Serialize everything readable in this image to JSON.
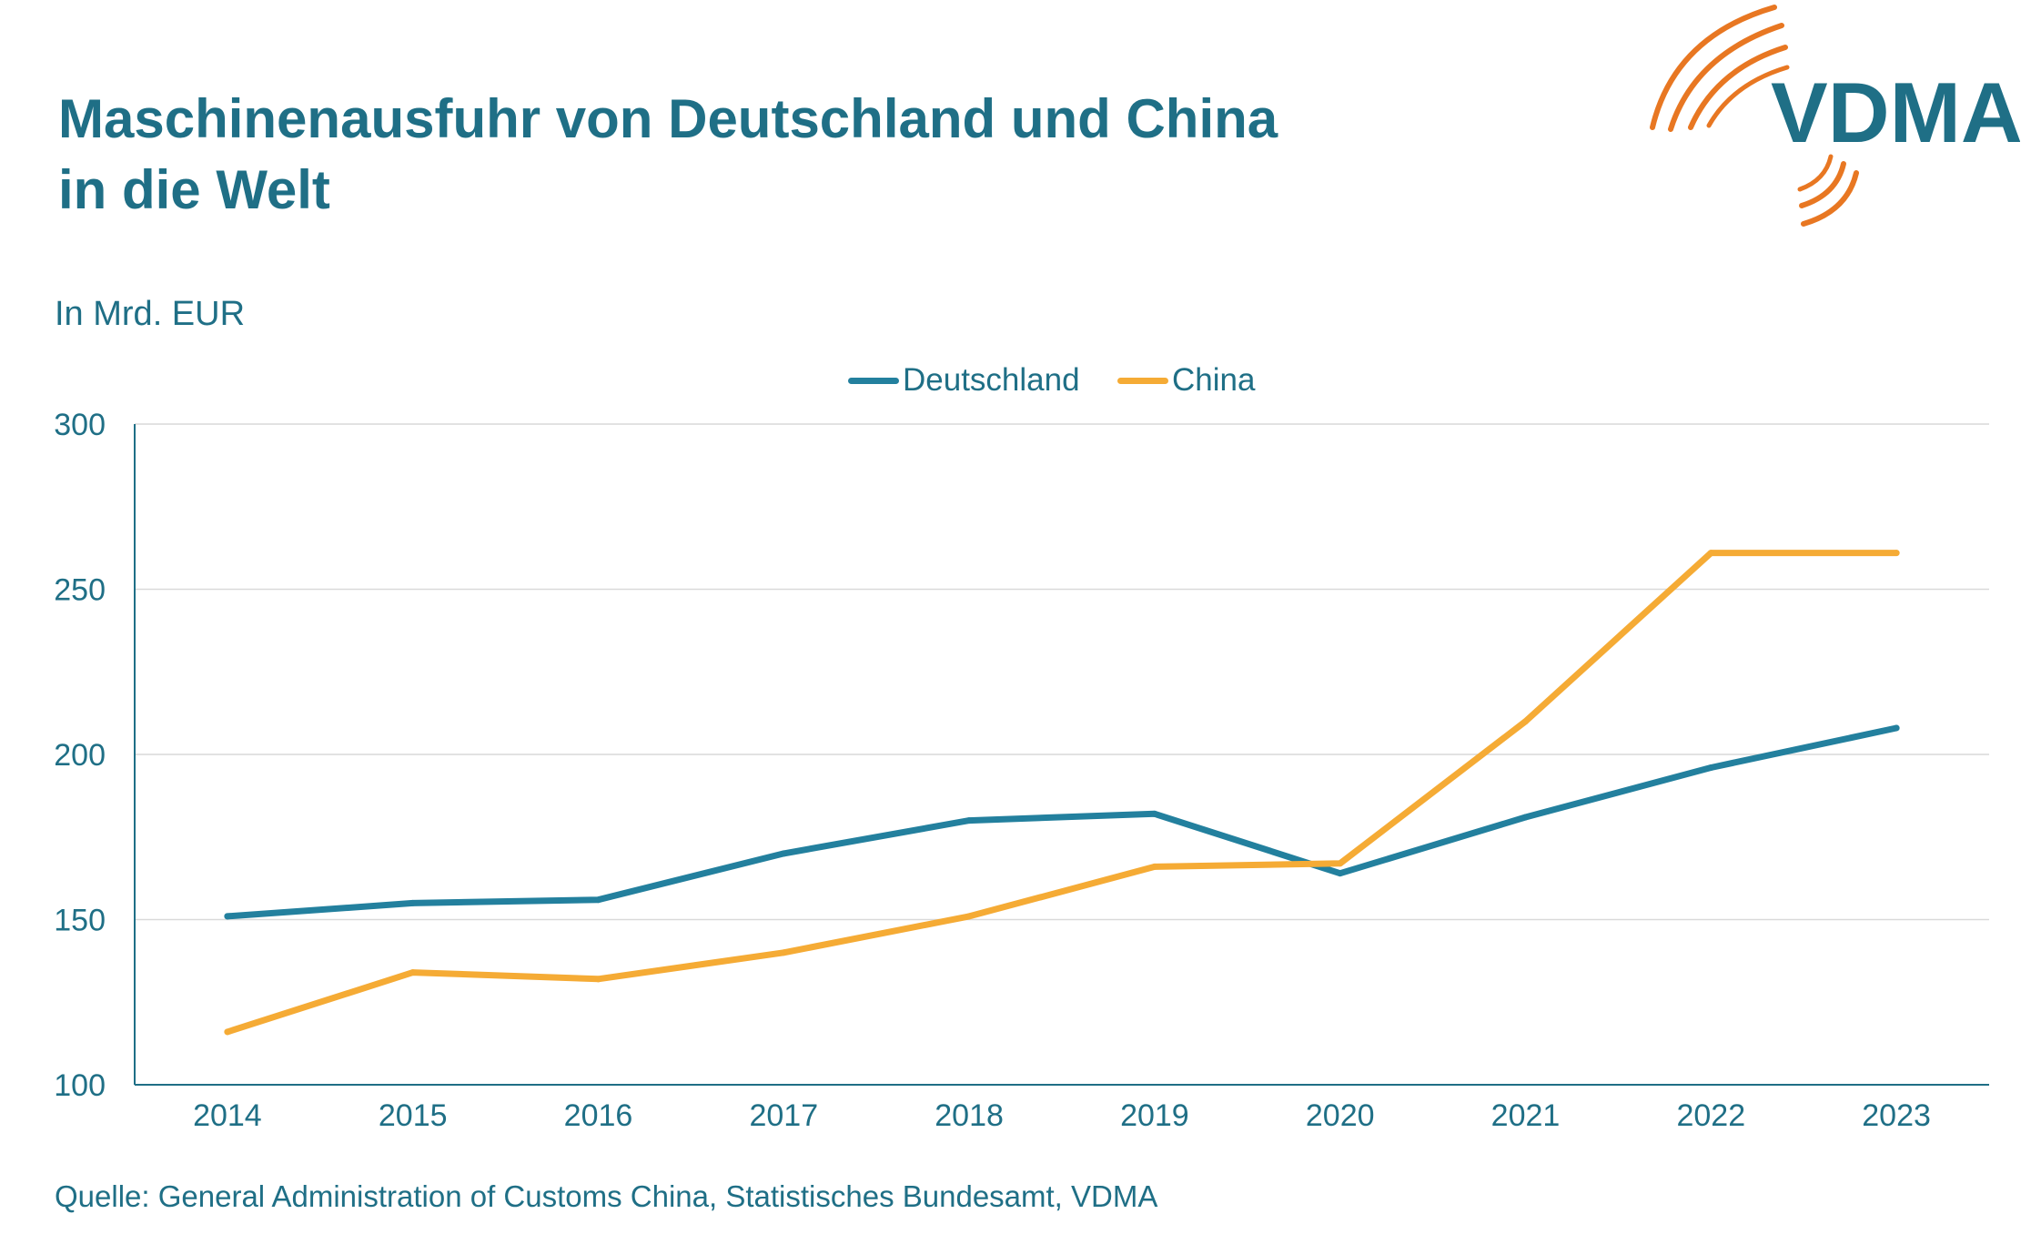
{
  "header": {
    "title_line1": "Maschinenausfuhr von Deutschland und China",
    "title_line2": "in die Welt"
  },
  "logo": {
    "text": "VDMA",
    "icon": "vdma-arcs-logo",
    "text_color": "#1f6f86",
    "arc_color": "#e87722"
  },
  "unit_label": "In Mrd. EUR",
  "legend": {
    "deutschland": "Deutschland",
    "china": "China"
  },
  "chart_data": {
    "type": "line",
    "title": "Maschinenausfuhr von Deutschland und China in die Welt",
    "xlabel": "",
    "ylabel": "In Mrd. EUR",
    "x": [
      "2014",
      "2015",
      "2016",
      "2017",
      "2018",
      "2019",
      "2020",
      "2021",
      "2022",
      "2023"
    ],
    "ylim": [
      100,
      300
    ],
    "yticks": [
      "100",
      "150",
      "200",
      "250",
      "300"
    ],
    "grid": "horizontal",
    "legend_position": "top-center",
    "series": [
      {
        "name": "Deutschland",
        "color": "#23809e",
        "values": [
          151,
          155,
          156,
          170,
          180,
          182,
          164,
          181,
          196,
          208
        ]
      },
      {
        "name": "China",
        "color": "#f5ab35",
        "values": [
          116,
          134,
          132,
          140,
          151,
          166,
          167,
          210,
          261,
          261
        ]
      }
    ]
  },
  "source": "Quelle: General Administration of Customs China, Statistisches Bundesamt, VDMA"
}
